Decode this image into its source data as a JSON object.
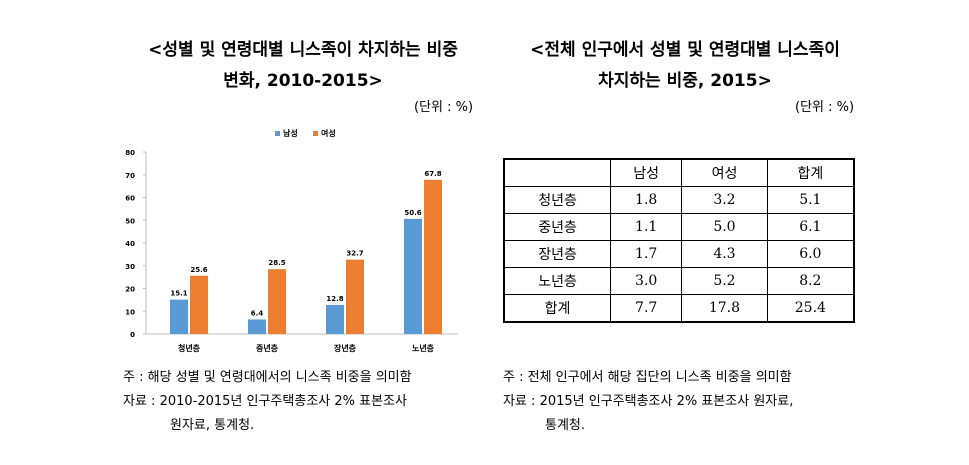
{
  "left": {
    "title_line1": "<성별 및 연령대별 니스족이 차지하는 비중",
    "title_line2": "변화, 2010-2015>",
    "unit": "(단위 : %)",
    "note1": "주 : 해당 성별 및 연령대에서의 니스족 비중을 의미함",
    "note2": "자료 : 2010-2015년 인구주택총조사 2% 표본조사",
    "note3": "원자료, 통계청."
  },
  "right": {
    "title_line1": "<전체 인구에서 성별 및 연령대별 니스족이",
    "title_line2": "차지하는 비중, 2015>",
    "unit": "(단위 : %)",
    "note1": "주 : 전체 인구에서 해당 집단의 니스족 비중을 의미함",
    "note2": "자료 : 2015년 인구주택총조사 2% 표본조사 원자료,",
    "note3": "통계청."
  },
  "colors": {
    "male": "#5b9bd5",
    "female": "#ed7d31",
    "axis": "#bfbfbf",
    "text": "#000000"
  },
  "chart_data": [
    {
      "type": "bar",
      "title": "",
      "categories": [
        "청년층",
        "중년층",
        "장년층",
        "노년층"
      ],
      "series": [
        {
          "name": "남성",
          "values": [
            15.1,
            6.4,
            12.8,
            50.6
          ]
        },
        {
          "name": "여성",
          "values": [
            25.6,
            28.5,
            32.7,
            67.8
          ]
        }
      ],
      "yticks": [
        0,
        10,
        20,
        30,
        40,
        50,
        60,
        70,
        80
      ],
      "ylim": [
        0,
        80
      ],
      "grid": false,
      "legend": "top-center",
      "data_labels": true
    },
    {
      "type": "table",
      "columns": [
        "",
        "남성",
        "여성",
        "합계"
      ],
      "rows": [
        [
          "청년층",
          "1.8",
          "3.2",
          "5.1"
        ],
        [
          "중년층",
          "1.1",
          "5.0",
          "6.1"
        ],
        [
          "장년층",
          "1.7",
          "4.3",
          "6.0"
        ],
        [
          "노년층",
          "3.0",
          "5.2",
          "8.2"
        ],
        [
          "합계",
          "7.7",
          "17.8",
          "25.4"
        ]
      ]
    }
  ]
}
